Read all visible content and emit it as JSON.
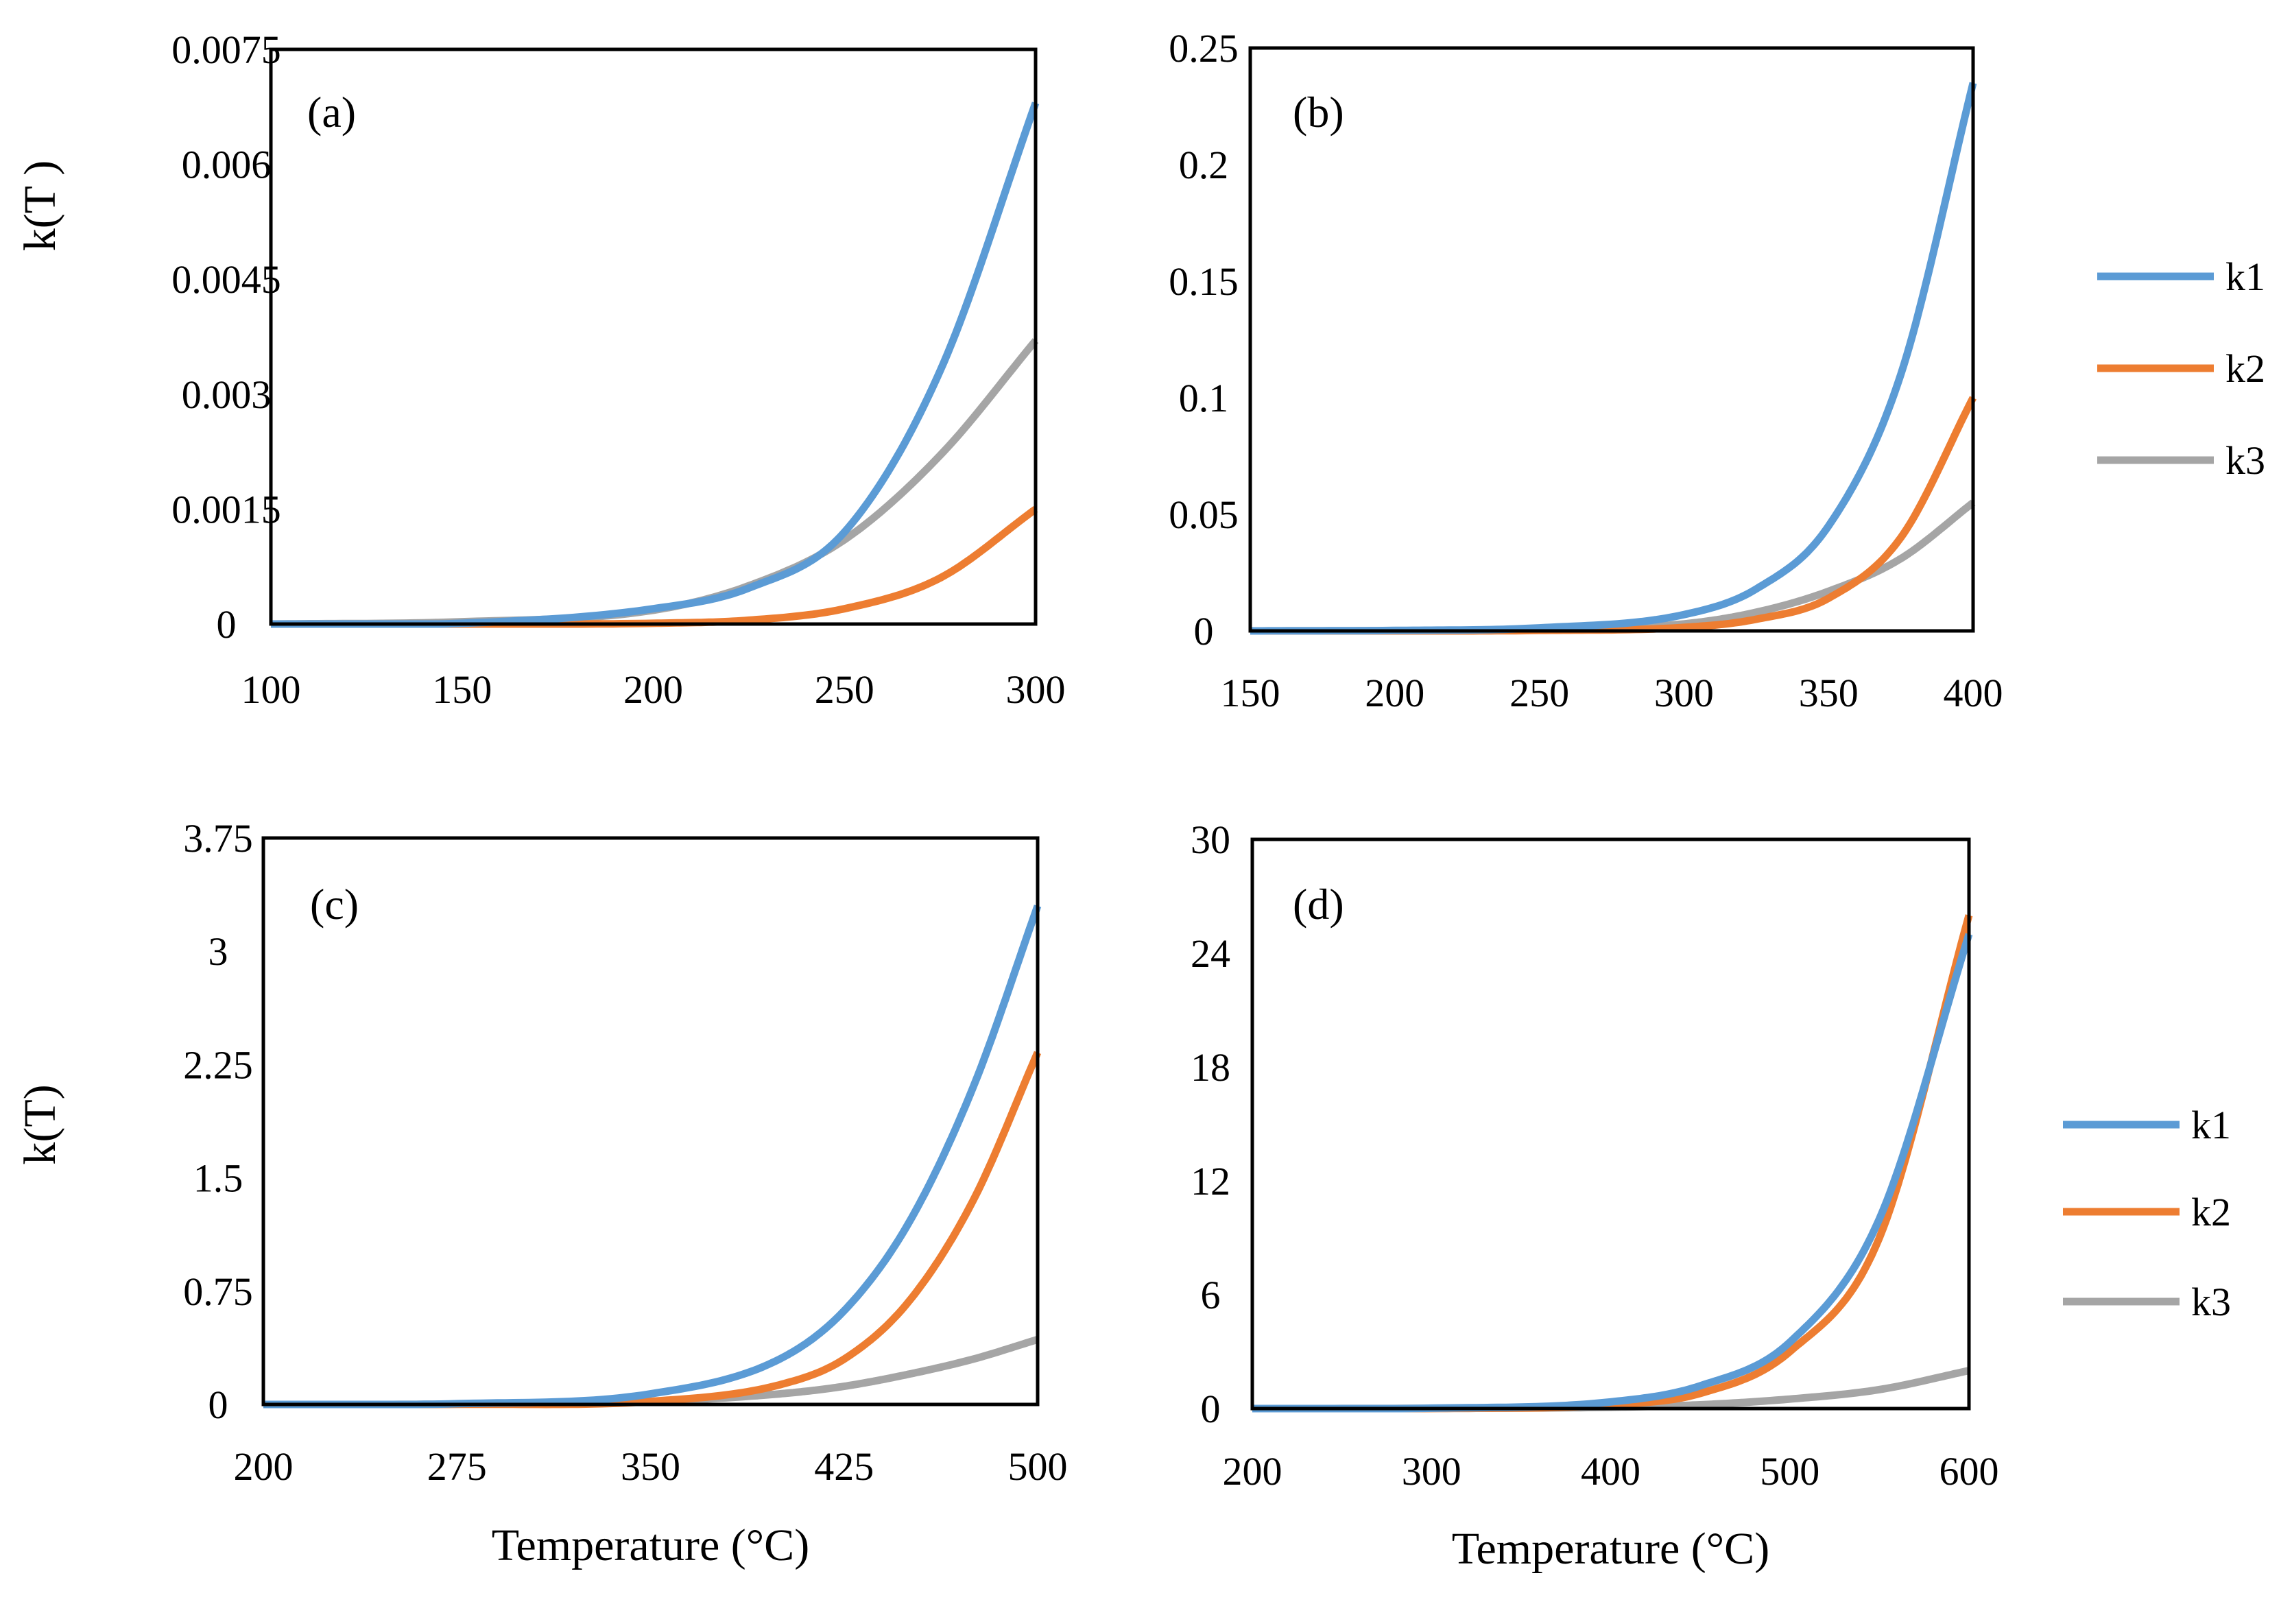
{
  "figure": {
    "series_colors": {
      "k1": "#5b9bd5",
      "k2": "#ed7d31",
      "k3": "#a5a5a5"
    },
    "legends": [
      {
        "entries": [
          "k1",
          "k2",
          "k3"
        ]
      },
      {
        "entries": [
          "k1",
          "k2",
          "k3"
        ]
      }
    ]
  },
  "chart_data": [
    {
      "type": "line",
      "panel": "(a)",
      "xlabel": "",
      "ylabel": "k(T )",
      "xlim": [
        100,
        300
      ],
      "ylim": [
        0,
        0.0075
      ],
      "xticks": [
        "100",
        "150",
        "200",
        "250",
        "300"
      ],
      "yticks": [
        "0",
        "0.0015",
        "0.003",
        "0.0045",
        "0.006",
        "0.0075"
      ],
      "x": [
        100,
        150,
        200,
        225,
        250,
        275,
        300
      ],
      "series": [
        {
          "name": "k1",
          "values": [
            0,
            1e-05,
            0.0002,
            0.00047,
            0.0012,
            0.0033,
            0.0068
          ]
        },
        {
          "name": "k2",
          "values": [
            0,
            0,
            1e-05,
            5e-05,
            0.0002,
            0.0006,
            0.0015
          ]
        },
        {
          "name": "k3",
          "values": [
            0,
            3e-05,
            0.00018,
            0.0005,
            0.0011,
            0.0022,
            0.0037
          ]
        }
      ]
    },
    {
      "type": "line",
      "panel": "(b)",
      "xlabel": "",
      "ylabel": "",
      "xlim": [
        150,
        400
      ],
      "ylim": [
        0,
        0.25
      ],
      "xticks": [
        "150",
        "200",
        "250",
        "300",
        "350",
        "400"
      ],
      "yticks": [
        "0",
        "0.05",
        "0.1",
        "0.15",
        "0.2",
        "0.25"
      ],
      "x": [
        150,
        200,
        250,
        300,
        325,
        350,
        375,
        400
      ],
      "series": [
        {
          "name": "k1",
          "values": [
            0,
            0.0002,
            0.0013,
            0.007,
            0.018,
            0.045,
            0.11,
            0.235
          ]
        },
        {
          "name": "k2",
          "values": [
            0,
            0,
            0.0002,
            0.0015,
            0.005,
            0.014,
            0.04,
            0.1
          ]
        },
        {
          "name": "k3",
          "values": [
            0,
            0.0001,
            0.0006,
            0.003,
            0.008,
            0.017,
            0.031,
            0.055
          ]
        }
      ]
    },
    {
      "type": "line",
      "panel": "(c)",
      "xlabel": "Temperature (°C)",
      "ylabel": "k(T)",
      "xlim": [
        200,
        500
      ],
      "ylim": [
        0,
        3.75
      ],
      "xticks": [
        "200",
        "275",
        "350",
        "425",
        "500"
      ],
      "yticks": [
        "0",
        "0.75",
        "1.5",
        "2.25",
        "3",
        "3.75"
      ],
      "x": [
        200,
        275,
        350,
        400,
        425,
        450,
        475,
        500
      ],
      "series": [
        {
          "name": "k1",
          "values": [
            0,
            0.005,
            0.07,
            0.3,
            0.62,
            1.2,
            2.1,
            3.3
          ]
        },
        {
          "name": "k2",
          "values": [
            0,
            0.001,
            0.02,
            0.13,
            0.3,
            0.68,
            1.35,
            2.33
          ]
        },
        {
          "name": "k3",
          "values": [
            0,
            0.002,
            0.02,
            0.07,
            0.12,
            0.2,
            0.3,
            0.43
          ]
        }
      ]
    },
    {
      "type": "line",
      "panel": "(d)",
      "xlabel": "Temperature (°C)",
      "ylabel": "",
      "xlim": [
        200,
        600
      ],
      "ylim": [
        0,
        30
      ],
      "xticks": [
        "200",
        "300",
        "400",
        "500",
        "600"
      ],
      "yticks": [
        "0",
        "6",
        "12",
        "18",
        "24",
        "30"
      ],
      "x": [
        200,
        300,
        400,
        450,
        500,
        550,
        600
      ],
      "series": [
        {
          "name": "k1",
          "values": [
            0,
            0.02,
            0.35,
            1.2,
            3.5,
            10,
            25
          ]
        },
        {
          "name": "k2",
          "values": [
            0,
            0.005,
            0.2,
            0.8,
            3,
            9,
            26
          ]
        },
        {
          "name": "k3",
          "values": [
            0,
            0.01,
            0.07,
            0.2,
            0.5,
            1.0,
            2.0
          ]
        }
      ]
    }
  ]
}
